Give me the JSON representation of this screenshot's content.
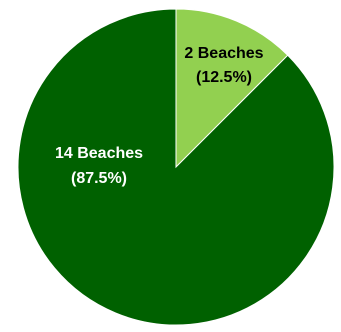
{
  "chart_data": {
    "type": "pie",
    "start_angle_deg": 0,
    "direction": "clockwise",
    "slices": [
      {
        "label": "2 Beaches",
        "percent_label": "(12.5%)",
        "value": 2,
        "percent": 12.5,
        "color": "#92d050",
        "label_color": "#000000"
      },
      {
        "label": "14 Beaches",
        "percent_label": "(87.5%)",
        "value": 14,
        "percent": 87.5,
        "color": "#006100",
        "label_color": "#ffffff"
      }
    ],
    "title": "",
    "legend": "none"
  }
}
